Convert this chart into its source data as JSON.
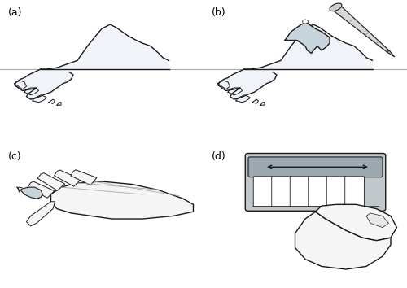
{
  "figure_width": 5.0,
  "figure_height": 3.54,
  "dpi": 100,
  "background_color": "#ffffff",
  "panel_labels": [
    "(a)",
    "(b)",
    "(c)",
    "(d)"
  ],
  "label_fontsize": 9,
  "label_color": "#000000",
  "line_color": "#1a1a1a",
  "fill_powder": "#f0f4f8",
  "fill_liquid": "#c8d4dc",
  "fill_hand": "#f5f5f5",
  "fill_dental": "#c0c8cc",
  "fill_dressing": "#9ca8b0",
  "surface_line_color": "#aaaaaa",
  "tooth_color": "#ffffff"
}
